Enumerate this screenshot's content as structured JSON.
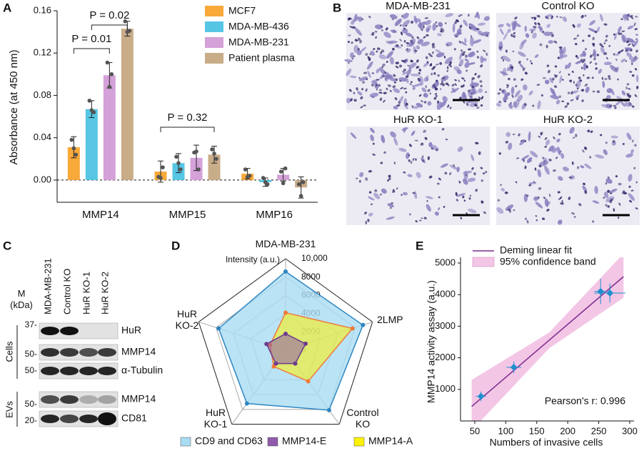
{
  "panel_labels": [
    "A",
    "B",
    "C",
    "D",
    "E"
  ],
  "chart_data": [
    {
      "type": "bar",
      "y_label": "Absorbance (at 450 nm)",
      "categories": [
        "MMP14",
        "MMP15",
        "MMP16"
      ],
      "ylim": [
        -0.021,
        0.16
      ],
      "yticks": [
        {
          "value": 0,
          "label": "0.00"
        },
        {
          "value": 0.04,
          "label": "0.04"
        },
        {
          "value": 0.08,
          "label": "0.08"
        },
        {
          "value": 0.12,
          "label": "0.12"
        },
        {
          "value": 0.16,
          "label": "0.16"
        }
      ],
      "annotations": [
        "P = 0.01",
        "P = 0.02",
        "P = 0.32"
      ],
      "series": [
        {
          "name": "MCF7",
          "color": "#f9a93a",
          "values": [
            0.031,
            0.008,
            0.006
          ],
          "errors": [
            0.01,
            0.01,
            0.005
          ],
          "points": [
            [
              0.038,
              0.024,
              0.03
            ],
            [
              0.003,
              0.012,
              0.002
            ],
            [
              0.01,
              0.004,
              0.003
            ]
          ]
        },
        {
          "name": "MDA-MB-436",
          "color": "#56c6e4",
          "values": [
            0.067,
            0.016,
            -0.002
          ],
          "errors": [
            0.008,
            0.009,
            0.004
          ],
          "points": [
            [
              0.075,
              0.064,
              0.066
            ],
            [
              0.022,
              0.01,
              0.016
            ],
            [
              0.002,
              -0.004,
              -0.002
            ]
          ]
        },
        {
          "name": "MDA-MB-231",
          "color": "#d4a1d9",
          "values": [
            0.099,
            0.021,
            0.005
          ],
          "errors": [
            0.012,
            0.012,
            0.006
          ],
          "points": [
            [
              0.111,
              0.1,
              0.088
            ],
            [
              0.026,
              0.01,
              0.027
            ],
            [
              0.008,
              0.011,
              -0.003
            ]
          ]
        },
        {
          "name": "Patient plasma",
          "color": "#c9ac88",
          "values": [
            0.143,
            0.024,
            -0.007
          ],
          "errors": [
            0.007,
            0.008,
            0.01
          ],
          "points": [
            [
              0.15,
              0.141,
              0.14
            ],
            [
              0.029,
              0.02,
              0.025
            ],
            [
              -0.004,
              -0.002,
              -0.015
            ]
          ]
        }
      ]
    },
    {
      "type": "radar",
      "r_label": "Intensity (a.u.)",
      "axes": [
        [
          "MDA-MB-231"
        ],
        [
          "2LMP"
        ],
        [
          "Control",
          "KO"
        ],
        [
          "HuR",
          "KO-1"
        ],
        [
          "HuR",
          "KO-2"
        ]
      ],
      "rlim": [
        0,
        10000
      ],
      "rticks": [
        0,
        2000,
        4000,
        6000,
        8000,
        {
          "value": 10000,
          "label": "10,000"
        }
      ],
      "series": [
        {
          "name": "CD9 and CD63",
          "color": "#a9dcf3",
          "line_color": "#2e86c1",
          "values": [
            8600,
            8900,
            8100,
            7200,
            7700
          ]
        },
        {
          "name": "MMP14-E",
          "color": "#8e5bab",
          "line_color": "#6e3b8f",
          "values": [
            1800,
            2300,
            1800,
            1800,
            2200
          ]
        },
        {
          "name": "MMP14-A",
          "color": "#fff200",
          "line_color": "#f07a3a",
          "values": [
            4100,
            7700,
            4200,
            2200,
            1800
          ]
        }
      ]
    },
    {
      "type": "scatter",
      "x_label": "Numbers of invasive cells",
      "y_label": "MMP14 activity assay (a.u.)",
      "xlim": [
        27,
        300
      ],
      "ylim": [
        0,
        5000
      ],
      "xticks": [
        50,
        100,
        150,
        200,
        250,
        300
      ],
      "yticks": [
        1000,
        2000,
        3000,
        4000,
        5000
      ],
      "annotation": "Pearson's r:  0.996",
      "points": {
        "color": "#1f8fd0",
        "x": [
          60,
          113,
          253,
          268
        ],
        "values": [
          780,
          1700,
          4100,
          4050
        ],
        "x_errors": [
          8,
          12,
          10,
          25
        ],
        "y_errors": [
          150,
          180,
          400,
          300
        ]
      },
      "fit": {
        "name": "Deming linear fit",
        "color": "#7b2d8e",
        "x": [
          45,
          290
        ],
        "values": [
          460,
          4570
        ]
      },
      "band": {
        "name": "95% confidence band",
        "color": "#f3c6e6",
        "x": [
          45,
          170,
          290
        ],
        "lower": [
          -300,
          2300,
          3900
        ],
        "upper": [
          1300,
          2800,
          5300
        ]
      }
    }
  ],
  "micrographs": {
    "titles": [
      "MDA-MB-231",
      "Control KO",
      "HuR KO-1",
      "HuR KO-2"
    ]
  },
  "western_blot": {
    "lanes": [
      "MDA-MB-231",
      "Control KO",
      "HuR KO-1",
      "HuR KO-2"
    ],
    "marker_title": [
      "M",
      "(kDa)"
    ],
    "markers": [
      "37-",
      "50-",
      "50-",
      "50-",
      "20-"
    ],
    "proteins": [
      "HuR",
      "MMP14",
      "α-Tubulin",
      "MMP14",
      "CD81"
    ],
    "groups": [
      "Cells",
      "EVs"
    ]
  }
}
